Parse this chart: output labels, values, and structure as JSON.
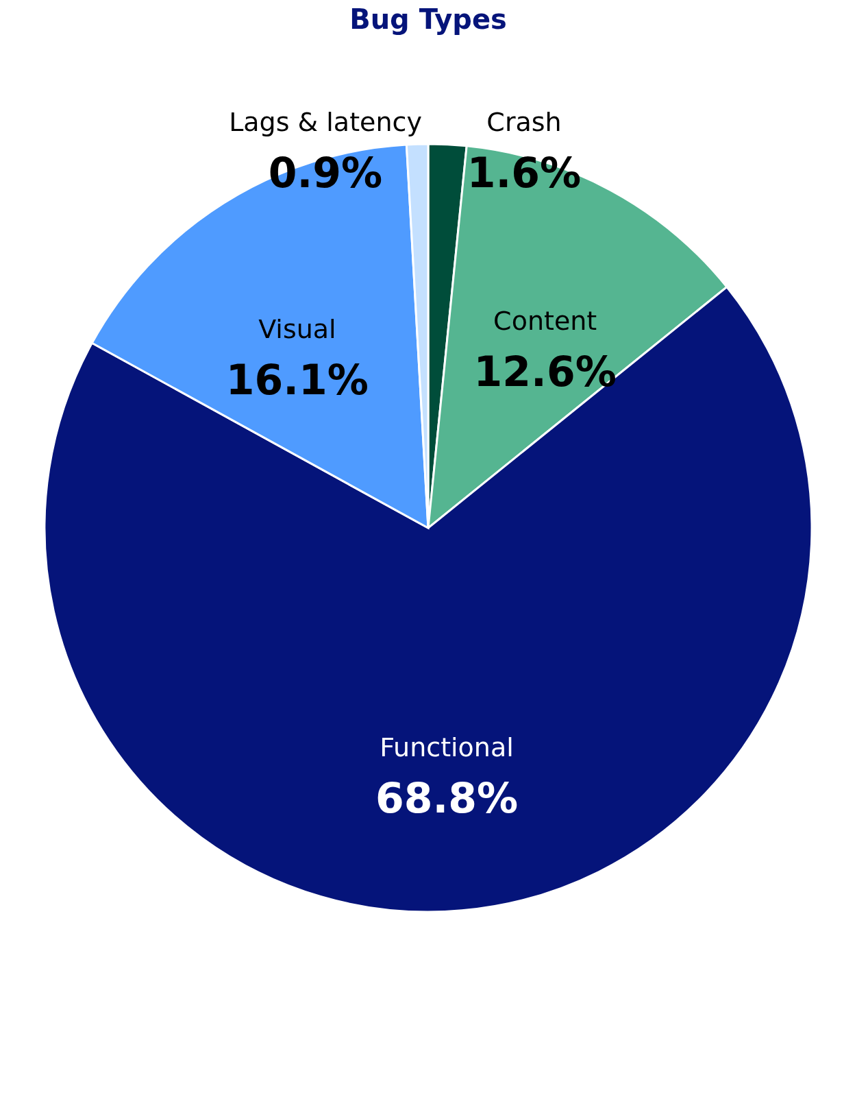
{
  "chart_data": {
    "type": "pie",
    "title": "Bug Types",
    "categories": [
      "Crash",
      "Content",
      "Functional",
      "Visual",
      "Lags & latency"
    ],
    "values": [
      1.6,
      12.6,
      68.8,
      16.1,
      0.9
    ],
    "colors": [
      "#004d3a",
      "#55b591",
      "#05147a",
      "#4f9bff",
      "#c4e0ff"
    ],
    "value_labels": [
      "1.6%",
      "12.6%",
      "68.8%",
      "16.1%",
      "0.9%"
    ],
    "legend": false
  }
}
